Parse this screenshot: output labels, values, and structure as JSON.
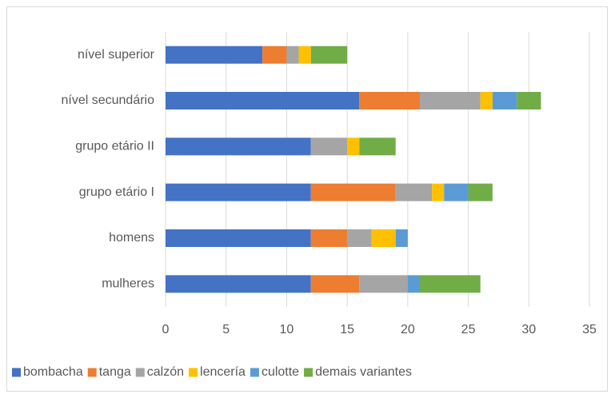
{
  "chart_data": {
    "type": "bar",
    "orientation": "horizontal",
    "stacked": true,
    "categories": [
      "mulheres",
      "homens",
      "grupo etário I",
      "grupo etário II",
      "nível secundário",
      "nível superior"
    ],
    "series": [
      {
        "name": "bombacha",
        "color": "#4472c4",
        "values": [
          12,
          12,
          12,
          12,
          16,
          8
        ]
      },
      {
        "name": "tanga",
        "color": "#ed7d31",
        "values": [
          4,
          3,
          7,
          0,
          5,
          2
        ]
      },
      {
        "name": "calzón",
        "color": "#a5a5a5",
        "values": [
          4,
          2,
          3,
          3,
          5,
          1
        ]
      },
      {
        "name": "lencería",
        "color": "#ffc000",
        "values": [
          0,
          2,
          1,
          1,
          1,
          1
        ]
      },
      {
        "name": "culotte",
        "color": "#5b9bd5",
        "values": [
          1,
          1,
          2,
          0,
          2,
          0
        ]
      },
      {
        "name": "demais variantes",
        "color": "#70ad47",
        "values": [
          5,
          0,
          2,
          3,
          2,
          3
        ]
      }
    ],
    "xlim": [
      0,
      35
    ],
    "xticks": [
      0,
      5,
      10,
      15,
      20,
      25,
      30,
      35
    ],
    "grid": true,
    "legend": "bottom"
  }
}
